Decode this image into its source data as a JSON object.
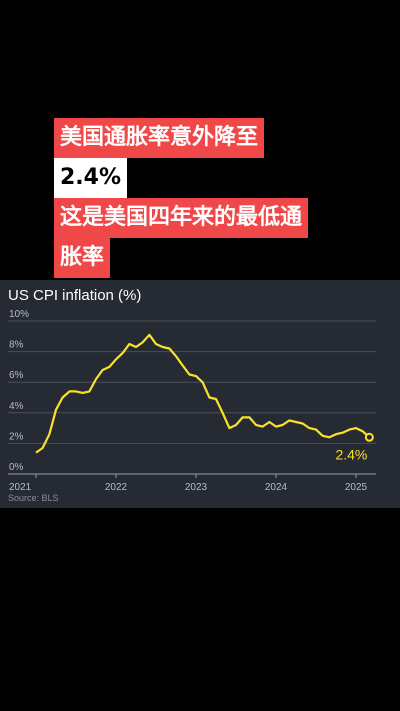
{
  "headline": {
    "line1": "美国通胀率意外降至",
    "line2": "2.4%",
    "line3": "这是美国四年来的最低通",
    "line4": "胀率"
  },
  "source": "Source: BLS",
  "colors": {
    "background": "#000000",
    "headline_bg": "#f04848",
    "card_bg": "#262a33",
    "line": "#f8e32b",
    "grid": "#4a4e57",
    "text": "#ffffff",
    "muted": "#8b8f96"
  },
  "chart_data": {
    "type": "line",
    "title": "US CPI inflation (%)",
    "xlabel": "",
    "ylabel": "",
    "ylim": [
      0,
      10
    ],
    "xlim": [
      2021.0,
      2025.2
    ],
    "yticks": [
      0,
      2,
      4,
      6,
      8,
      10
    ],
    "ytick_labels": [
      "0%",
      "2%",
      "4%",
      "6%",
      "8%",
      "10%"
    ],
    "xticks": [
      2021,
      2022,
      2023,
      2024,
      2025
    ],
    "xtick_labels": [
      "2021",
      "2022",
      "2023",
      "2024",
      "2025"
    ],
    "grid": true,
    "annotation": "2.4%",
    "series": [
      {
        "name": "",
        "x": [
          2021.0,
          2021.083,
          2021.167,
          2021.25,
          2021.333,
          2021.417,
          2021.5,
          2021.583,
          2021.667,
          2021.75,
          2021.833,
          2021.917,
          2022.0,
          2022.083,
          2022.167,
          2022.25,
          2022.333,
          2022.417,
          2022.5,
          2022.583,
          2022.667,
          2022.75,
          2022.833,
          2022.917,
          2023.0,
          2023.083,
          2023.167,
          2023.25,
          2023.333,
          2023.417,
          2023.5,
          2023.583,
          2023.667,
          2023.75,
          2023.833,
          2023.917,
          2024.0,
          2024.083,
          2024.167,
          2024.25,
          2024.333,
          2024.417,
          2024.5,
          2024.583,
          2024.667,
          2024.75,
          2024.833,
          2024.917,
          2025.0,
          2025.083,
          2025.167
        ],
        "values": [
          1.4,
          1.7,
          2.6,
          4.2,
          5.0,
          5.4,
          5.4,
          5.3,
          5.4,
          6.2,
          6.8,
          7.0,
          7.5,
          7.9,
          8.5,
          8.3,
          8.6,
          9.1,
          8.5,
          8.3,
          8.2,
          7.7,
          7.1,
          6.5,
          6.4,
          6.0,
          5.0,
          4.9,
          4.0,
          3.0,
          3.2,
          3.7,
          3.7,
          3.2,
          3.1,
          3.4,
          3.1,
          3.2,
          3.5,
          3.4,
          3.3,
          3.0,
          2.9,
          2.5,
          2.4,
          2.6,
          2.7,
          2.9,
          3.0,
          2.8,
          2.4
        ]
      }
    ]
  }
}
